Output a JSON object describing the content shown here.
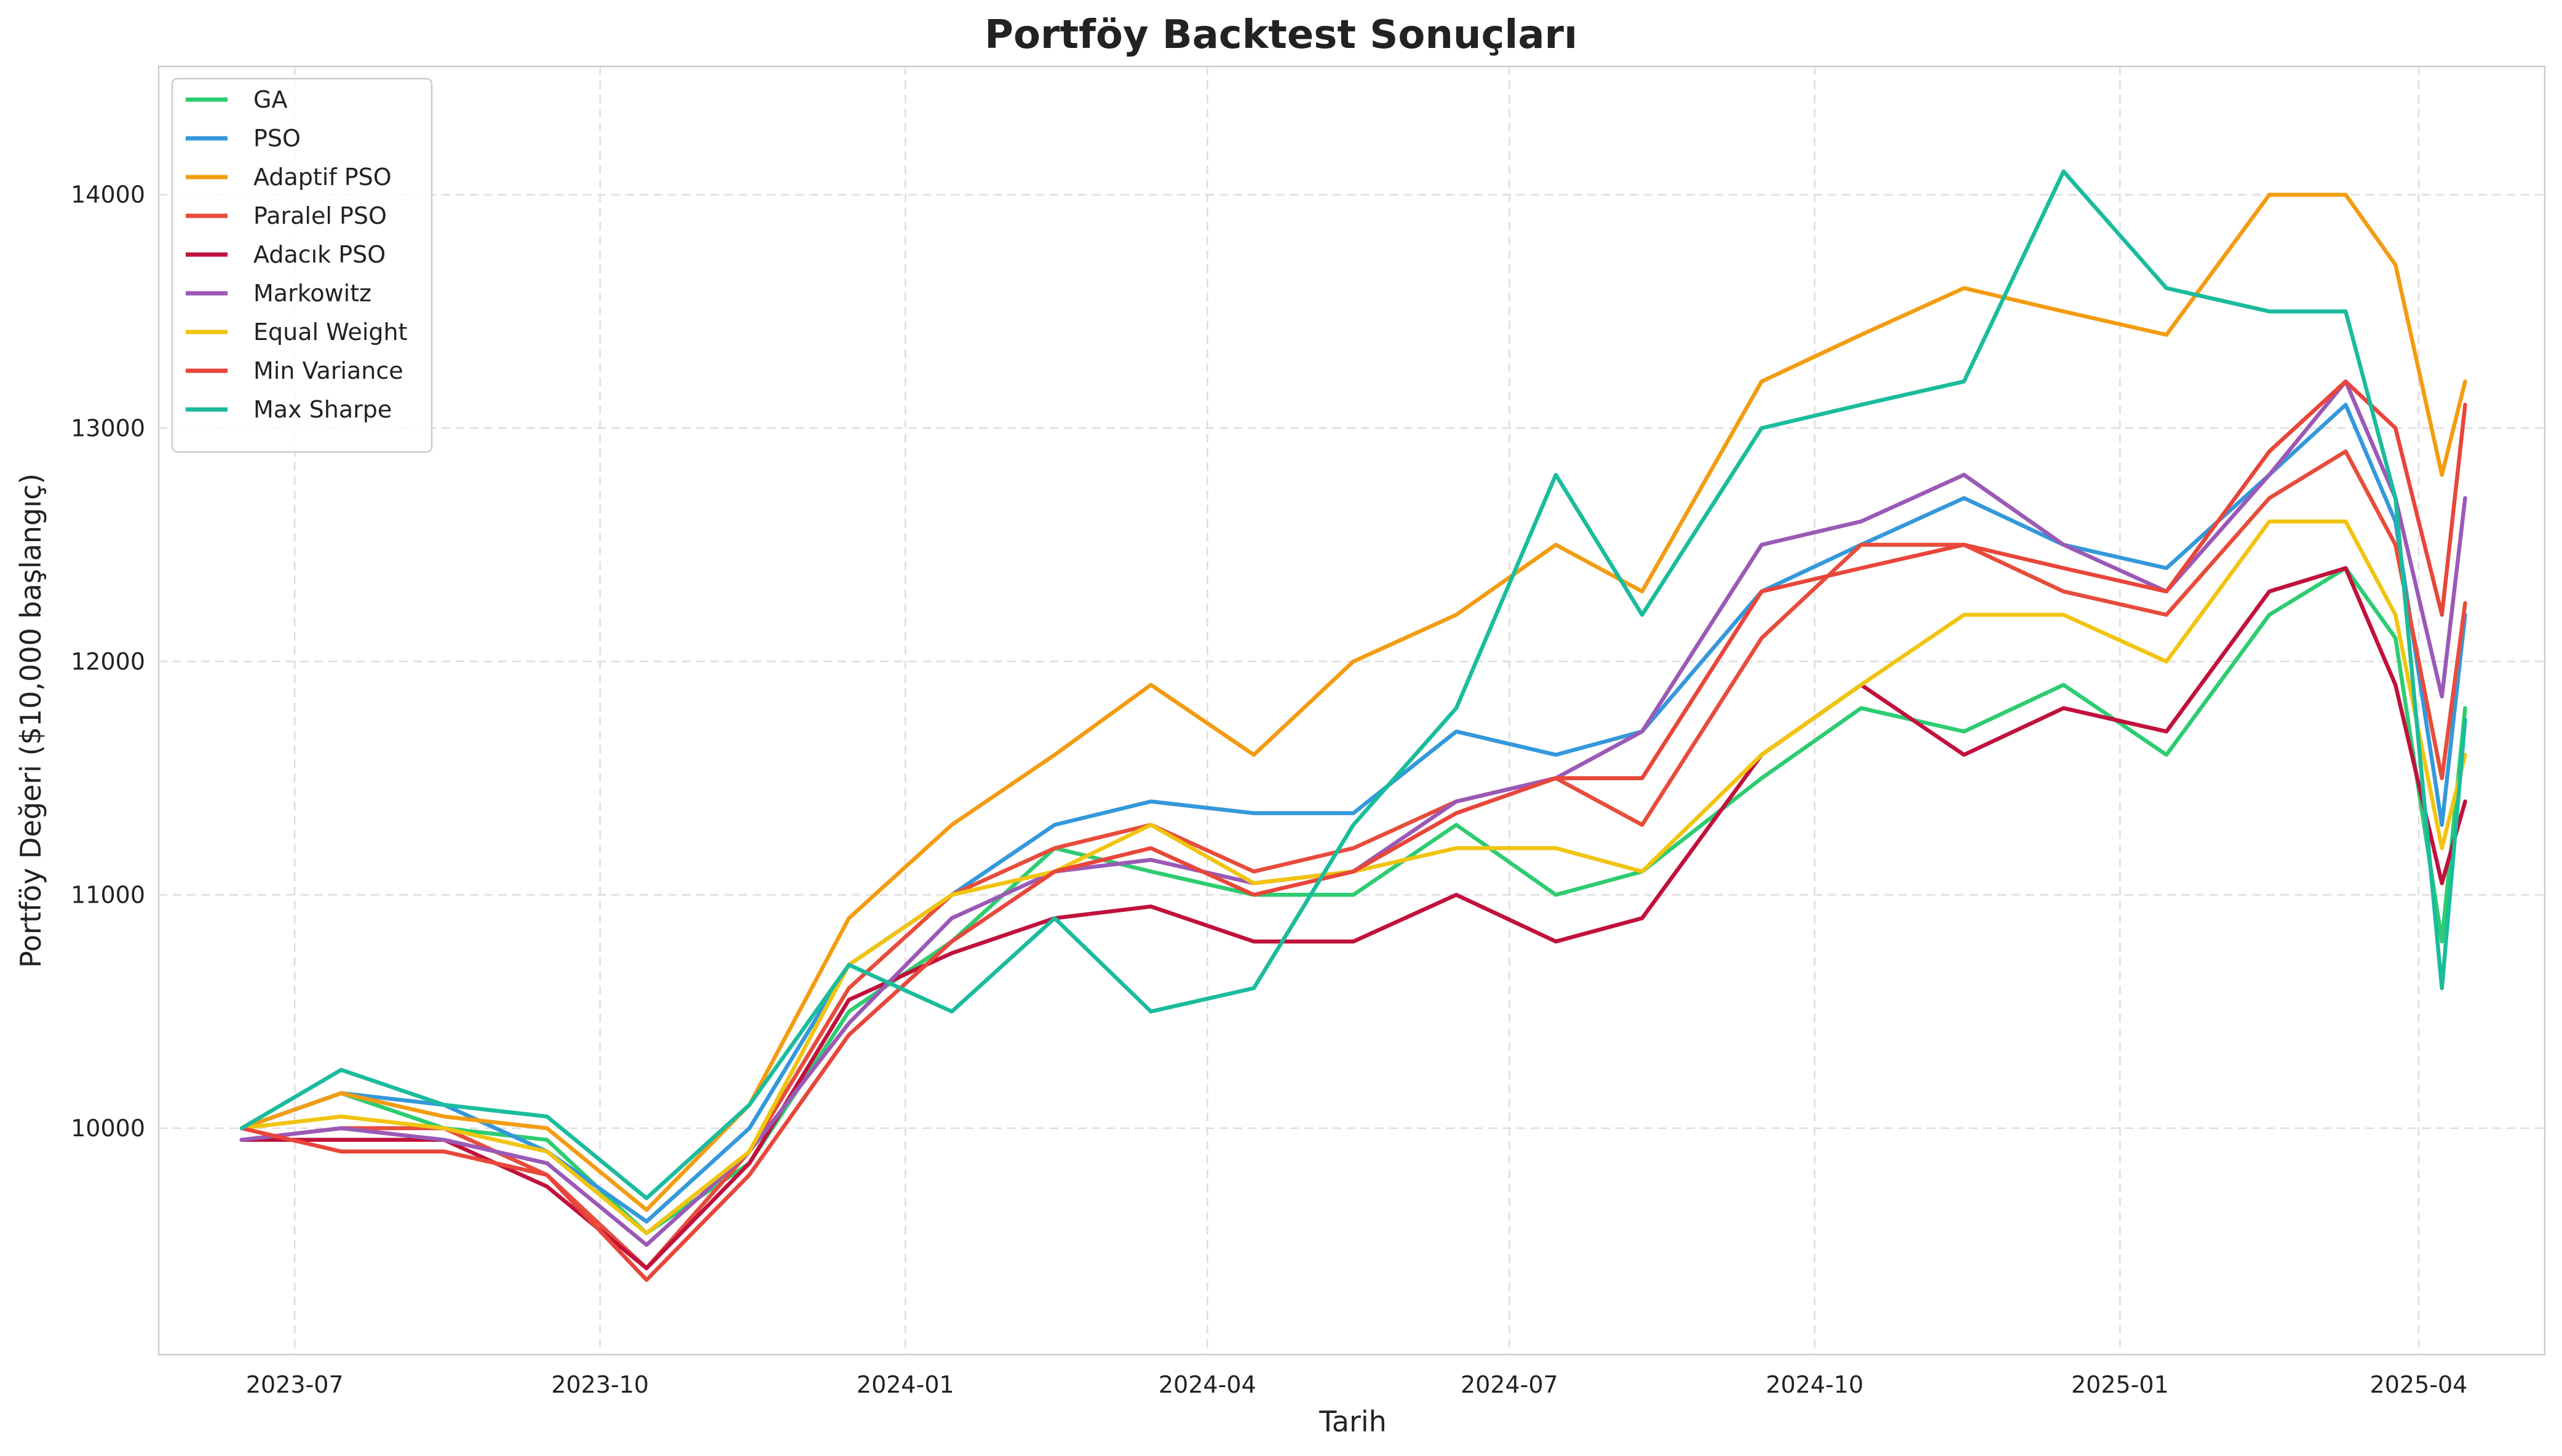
{
  "chart_data": {
    "type": "line",
    "title": "Portföy Backtest Sonuçları",
    "xlabel": "Tarih",
    "ylabel": "Portföy Değeri ($10,000 başlangıç)",
    "x_ticks": [
      "2023-07",
      "2023-10",
      "2024-01",
      "2024-04",
      "2024-07",
      "2024-10",
      "2025-01",
      "2025-04"
    ],
    "y_ticks": [
      10000,
      11000,
      12000,
      13000,
      14000
    ],
    "xlim": [
      "2023-05-21",
      "2025-05-09"
    ],
    "ylim": [
      9030,
      14550
    ],
    "grid": true,
    "legend_position": "top-left",
    "x": [
      "2023-06-15",
      "2023-07-15",
      "2023-08-15",
      "2023-09-15",
      "2023-10-15",
      "2023-11-15",
      "2023-12-15",
      "2024-01-15",
      "2024-02-15",
      "2024-03-15",
      "2024-04-15",
      "2024-05-15",
      "2024-06-15",
      "2024-07-15",
      "2024-08-10",
      "2024-09-15",
      "2024-10-15",
      "2024-11-15",
      "2024-12-15",
      "2025-01-15",
      "2025-02-15",
      "2025-03-10",
      "2025-03-25",
      "2025-04-08",
      "2025-04-15"
    ],
    "series": [
      {
        "name": "GA",
        "color": "#2ecc71",
        "values": [
          10000,
          10150,
          10000,
          9950,
          9550,
          9850,
          10500,
          10800,
          11200,
          11100,
          11000,
          11000,
          11300,
          11000,
          11100,
          11500,
          11800,
          11700,
          11900,
          11600,
          12200,
          12400,
          12100,
          10800,
          11800
        ]
      },
      {
        "name": "PSO",
        "color": "#3498db",
        "values": [
          10000,
          10150,
          10100,
          9900,
          9600,
          10000,
          10700,
          11000,
          11300,
          11400,
          11350,
          11350,
          11700,
          11600,
          11700,
          12300,
          12500,
          12700,
          12500,
          12400,
          12800,
          13100,
          12600,
          11300,
          12200
        ]
      },
      {
        "name": "Adaptif PSO",
        "color": "#f39c12",
        "values": [
          10000,
          10150,
          10050,
          10000,
          9650,
          10100,
          10900,
          11300,
          11600,
          11900,
          11600,
          12000,
          12200,
          12500,
          12300,
          13200,
          13400,
          13600,
          13500,
          13400,
          14000,
          14000,
          13700,
          12800,
          13200
        ]
      },
      {
        "name": "Paralel PSO",
        "color": "#e74c3c",
        "values": [
          9950,
          10000,
          10000,
          9800,
          9400,
          9900,
          10600,
          11000,
          11200,
          11300,
          11100,
          11200,
          11400,
          11500,
          11300,
          12100,
          12500,
          12500,
          12300,
          12200,
          12700,
          12900,
          12500,
          11500,
          12250
        ]
      },
      {
        "name": "Adacık PSO",
        "color": "#c0113c",
        "values": [
          9950,
          9950,
          9950,
          9750,
          9400,
          9850,
          10550,
          10750,
          10900,
          10950,
          10800,
          10800,
          11000,
          10800,
          10900,
          11600,
          11900,
          11600,
          11800,
          11700,
          12300,
          12400,
          11900,
          11050,
          11400
        ]
      },
      {
        "name": "Markowitz",
        "color": "#9b59b6",
        "values": [
          9950,
          10000,
          9950,
          9850,
          9500,
          9900,
          10450,
          10900,
          11100,
          11150,
          11050,
          11100,
          11400,
          11500,
          11700,
          12500,
          12600,
          12800,
          12500,
          12300,
          12800,
          13200,
          12700,
          11850,
          12700
        ]
      },
      {
        "name": "Equal Weight",
        "color": "#f1c40f",
        "values": [
          10000,
          10050,
          10000,
          9900,
          9550,
          9900,
          10700,
          11000,
          11100,
          11300,
          11050,
          11100,
          11200,
          11200,
          11100,
          11600,
          11900,
          12200,
          12200,
          12000,
          12600,
          12600,
          12200,
          11200,
          11600
        ]
      },
      {
        "name": "Min Variance",
        "color": "#e8463a",
        "values": [
          10000,
          9900,
          9900,
          9800,
          9350,
          9800,
          10400,
          10800,
          11100,
          11200,
          11000,
          11100,
          11350,
          11500,
          11500,
          12300,
          12400,
          12500,
          12400,
          12300,
          12900,
          13200,
          13000,
          12200,
          13100
        ]
      },
      {
        "name": "Max Sharpe",
        "color": "#1abc9c",
        "values": [
          10000,
          10250,
          10100,
          10050,
          9700,
          10100,
          10700,
          10500,
          10900,
          10500,
          10600,
          11300,
          11800,
          12800,
          12200,
          13000,
          13100,
          13200,
          14100,
          13600,
          13500,
          13500,
          12700,
          10600,
          11750
        ]
      }
    ]
  }
}
